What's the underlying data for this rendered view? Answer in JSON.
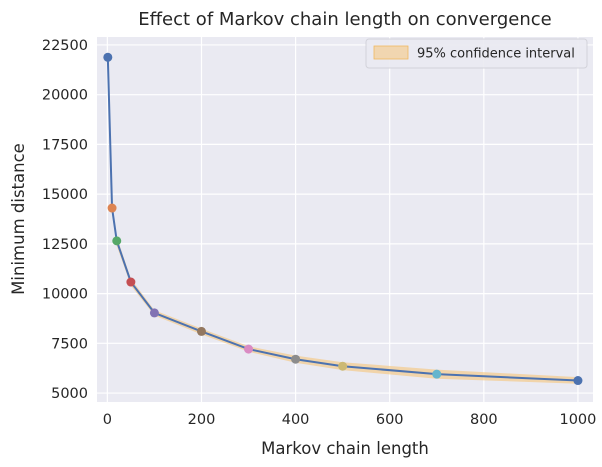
{
  "chart_data": {
    "type": "line",
    "title": "Effect of Markov chain length on convergence",
    "xlabel": "Markov chain length",
    "ylabel": "Minimum distance",
    "xlim": [
      -22,
      1032
    ],
    "ylim": [
      4550,
      22900
    ],
    "xticks": [
      0,
      200,
      400,
      600,
      800,
      1000
    ],
    "yticks": [
      5000,
      7500,
      10000,
      12500,
      15000,
      17500,
      20000,
      22500
    ],
    "grid": true,
    "legend": {
      "position": "top-right",
      "entries": [
        "95% confidence interval"
      ]
    },
    "x": [
      1,
      10,
      20,
      50,
      100,
      200,
      300,
      400,
      500,
      700,
      1000
    ],
    "series": [
      {
        "values": [
          21880,
          14300,
          12650,
          10580,
          9030,
          8100,
          7210,
          6700,
          6350,
          5950,
          5630
        ],
        "ci_lower": [
          21500,
          14000,
          12400,
          10400,
          8900,
          7950,
          7080,
          6520,
          6150,
          5720,
          5470
        ],
        "ci_upper": [
          22250,
          14550,
          12850,
          10750,
          9160,
          8240,
          7350,
          6880,
          6550,
          6180,
          5800
        ]
      }
    ],
    "colors": {
      "background": "#eaeaf2",
      "grid": "#ffffff",
      "line": "#4c72b0",
      "ci_fill": "#f5c47a",
      "markers": [
        "#4c72b0",
        "#dd8452",
        "#55a868",
        "#c44e52",
        "#8172b3",
        "#937860",
        "#da8bc3",
        "#8c8c8c",
        "#ccb974",
        "#64b5cd",
        "#4c72b0"
      ]
    }
  }
}
